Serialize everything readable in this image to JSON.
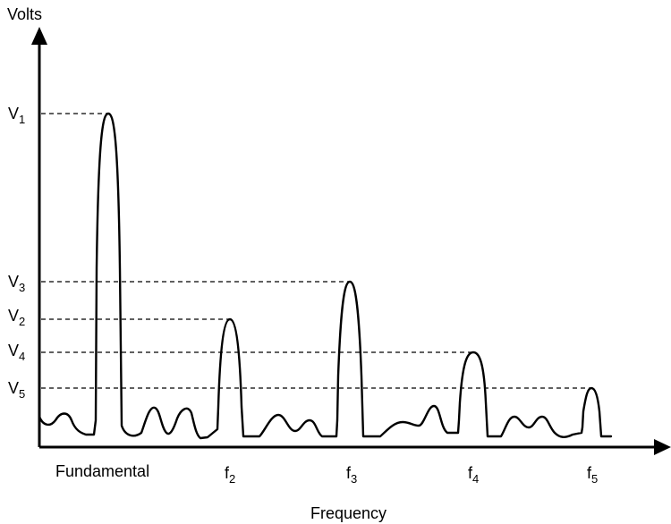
{
  "diagram": {
    "y_axis_label": "Volts",
    "x_axis_label": "Frequency",
    "voltage_levels": [
      {
        "id": "V1",
        "base": "V",
        "sub": "1"
      },
      {
        "id": "V3",
        "base": "V",
        "sub": "3"
      },
      {
        "id": "V2",
        "base": "V",
        "sub": "2"
      },
      {
        "id": "V4",
        "base": "V",
        "sub": "4"
      },
      {
        "id": "V5",
        "base": "V",
        "sub": "5"
      }
    ],
    "frequency_labels": [
      {
        "id": "fundamental",
        "text": "Fundamental"
      },
      {
        "id": "f2",
        "base": "f",
        "sub": "2"
      },
      {
        "id": "f3",
        "base": "f",
        "sub": "3"
      },
      {
        "id": "f4",
        "base": "f",
        "sub": "4"
      },
      {
        "id": "f5",
        "base": "f",
        "sub": "5"
      }
    ],
    "colors": {
      "stroke": "#000000",
      "background": "#ffffff"
    }
  }
}
